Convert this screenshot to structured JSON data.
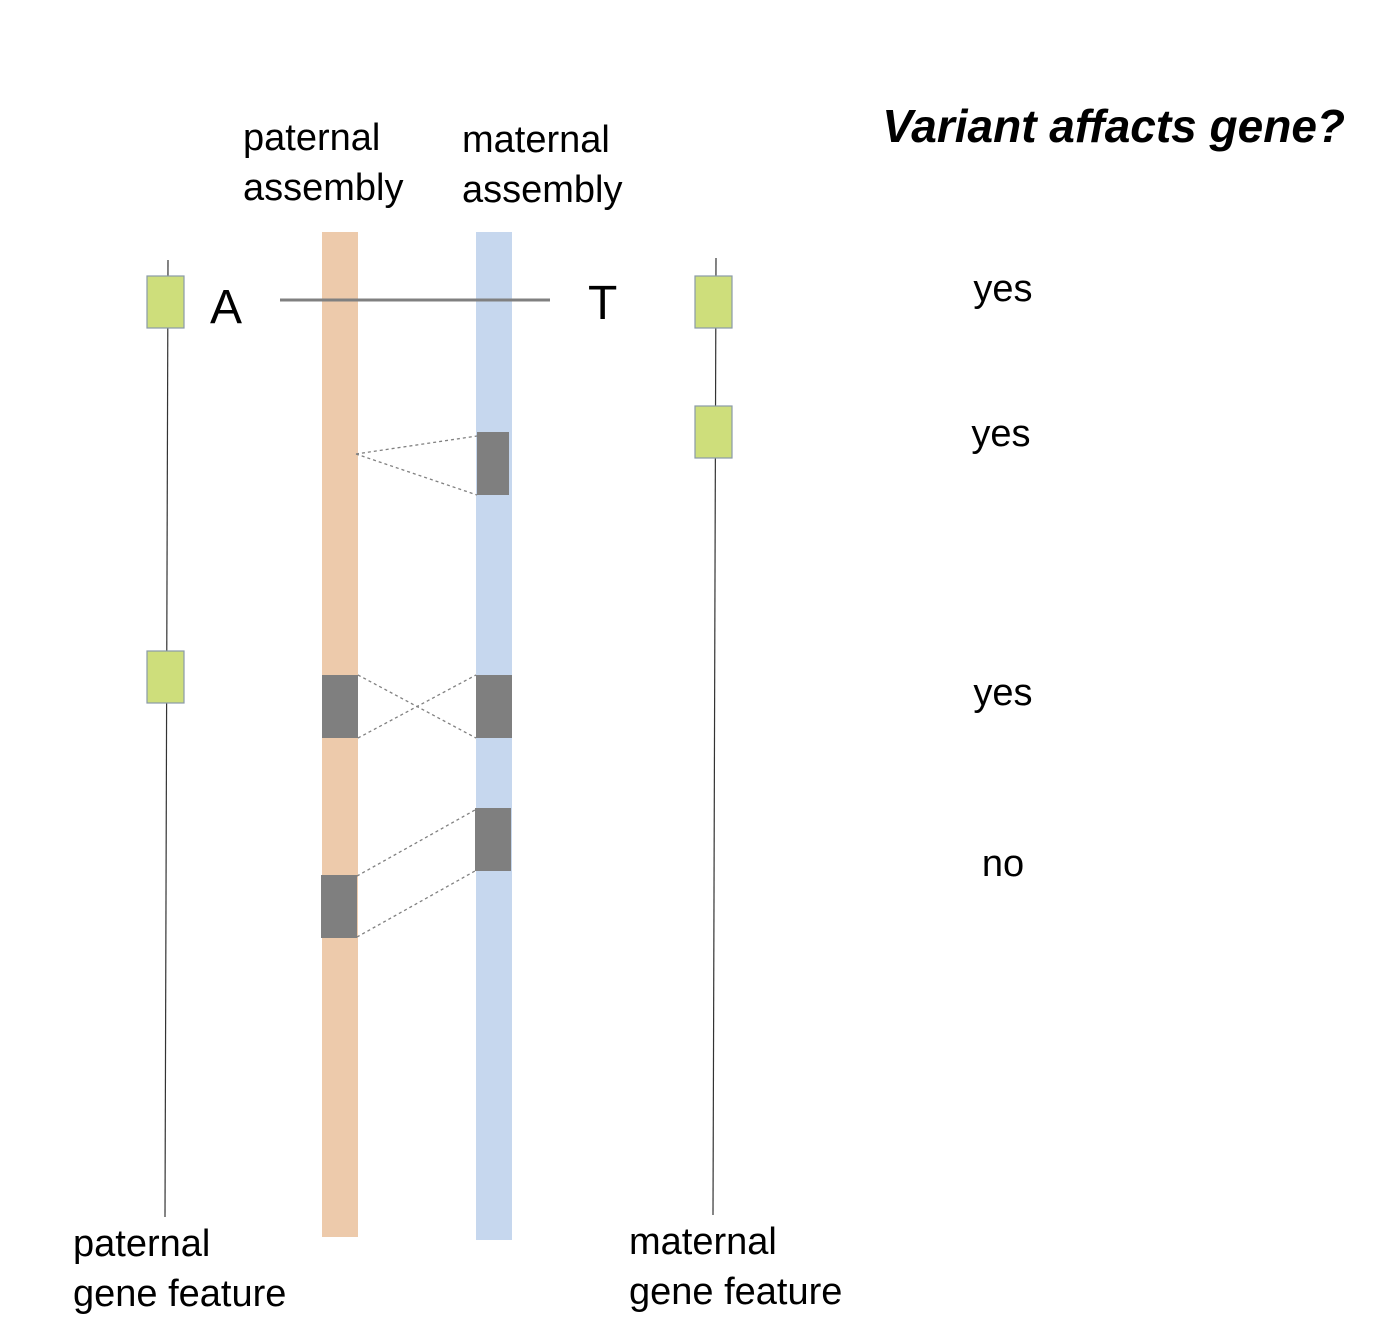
{
  "title": "Variant affacts gene?",
  "headers": {
    "paternal_assembly": [
      "paternal",
      "assembly"
    ],
    "maternal_assembly": [
      "maternal",
      "assembly"
    ]
  },
  "footers": {
    "paternal_gene_feature": [
      "paternal",
      "gene feature"
    ],
    "maternal_gene_feature": [
      "maternal",
      "gene feature"
    ]
  },
  "alleles": {
    "paternal": "A",
    "maternal": "T"
  },
  "answers": [
    "yes",
    "yes",
    "yes",
    "no"
  ],
  "colors": {
    "paternal_assembly": "#edcaab",
    "maternal_assembly": "#c6d7ee",
    "gene_feature": "#cede7b",
    "variant_block": "#7f7f7f",
    "connector": "#808080"
  }
}
